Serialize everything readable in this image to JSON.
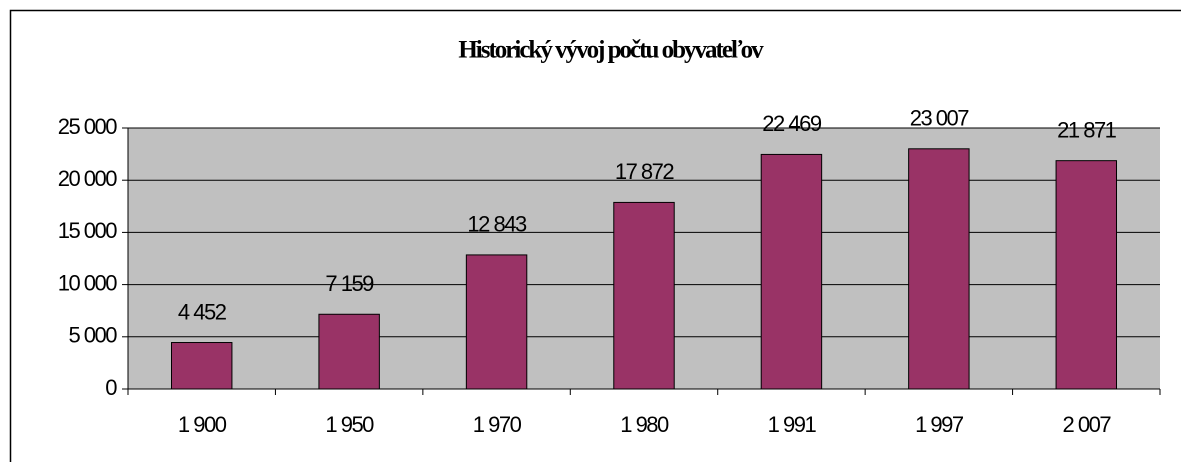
{
  "chart_data": {
    "type": "bar",
    "title": "Historický vývoj počtu obyvateľov",
    "categories": [
      "1 900",
      "1 950",
      "1 970",
      "1 980",
      "1 991",
      "1 997",
      "2 007"
    ],
    "values": [
      4452,
      7159,
      12843,
      17872,
      22469,
      23007,
      21871
    ],
    "value_labels": [
      "4 452",
      "7 159",
      "12 843",
      "17 872",
      "22 469",
      "23 007",
      "21 871"
    ],
    "color": "#993366",
    "ylim": [
      0,
      25000
    ],
    "yticks": [
      0,
      {
        "value": 5000,
        "label": "5 000"
      },
      {
        "value": 10000,
        "label": "10 000"
      },
      {
        "value": 15000,
        "label": "15 000"
      },
      {
        "value": 20000,
        "label": "20 000"
      },
      {
        "value": 25000,
        "label": "25 000"
      }
    ],
    "grid": true
  }
}
